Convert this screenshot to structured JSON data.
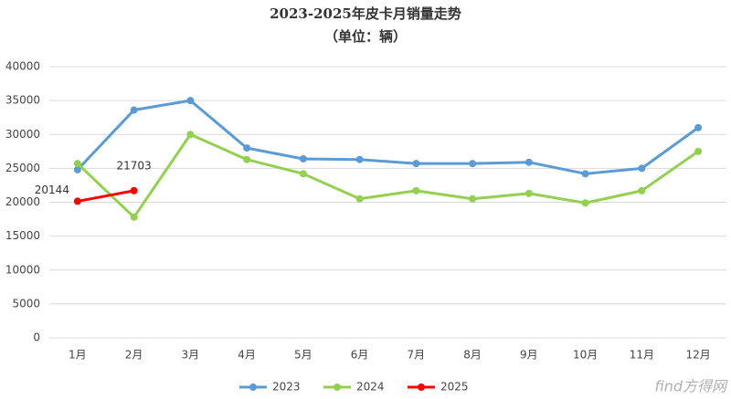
{
  "chart_data": {
    "type": "line",
    "title": "2023-2025年皮卡月销量走势",
    "subtitle": "（单位：辆）",
    "categories": [
      "1月",
      "2月",
      "3月",
      "4月",
      "5月",
      "6月",
      "7月",
      "8月",
      "9月",
      "10月",
      "11月",
      "12月"
    ],
    "series": [
      {
        "name": "2023",
        "color": "#5b9bd5",
        "values": [
          24800,
          33600,
          35000,
          28000,
          26400,
          26300,
          25700,
          25700,
          25900,
          24200,
          25000,
          31000
        ]
      },
      {
        "name": "2024",
        "color": "#92d050",
        "values": [
          25700,
          17800,
          30000,
          26300,
          24200,
          20500,
          21700,
          20500,
          21300,
          19900,
          21700,
          27500
        ]
      },
      {
        "name": "2025",
        "color": "#ff0000",
        "show_labels": true,
        "values": [
          20144,
          21703,
          null,
          null,
          null,
          null,
          null,
          null,
          null,
          null,
          null,
          null
        ]
      }
    ],
    "ylim": [
      0,
      40000
    ],
    "yticks": [
      0,
      5000,
      10000,
      15000,
      20000,
      25000,
      30000,
      35000,
      40000
    ],
    "grid": true,
    "legend": "bottom",
    "watermark": "find方得网"
  }
}
